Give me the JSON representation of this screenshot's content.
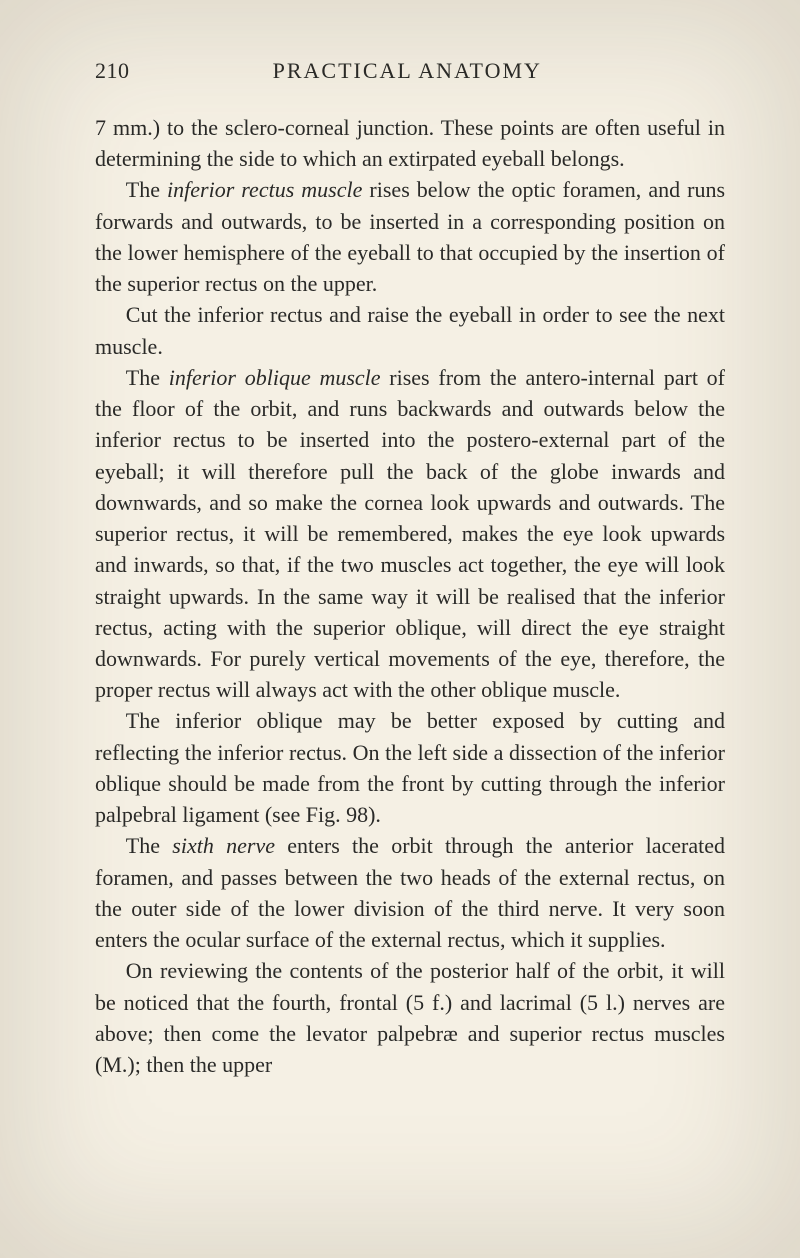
{
  "page": {
    "number": "210",
    "running_title": "PRACTICAL ANATOMY"
  },
  "paragraphs": {
    "p1_a": "7 mm.) to the sclero-corneal junction. These points are often useful in determining the side to which an extirpated eyeball belongs.",
    "p2_a": "The ",
    "p2_b": "inferior rectus muscle",
    "p2_c": " rises below the optic foramen, and runs forwards and outwards, to be inserted in a corresponding position on the lower hemisphere of the eyeball to that occupied by the insertion of the superior rectus on the upper.",
    "p3_a": "Cut the inferior rectus and raise the eyeball in order to see the next muscle.",
    "p4_a": "The ",
    "p4_b": "inferior oblique muscle",
    "p4_c": " rises from the antero-internal part of the floor of the orbit, and runs backwards and outwards below the inferior rectus to be inserted into the postero-external part of the eyeball; it will therefore pull the back of the globe inwards and downwards, and so make the cornea look upwards and outwards. The superior rectus, it will be remembered, makes the eye look upwards and inwards, so that, if the two muscles act together, the eye will look straight upwards. In the same way it will be realised that the inferior rectus, acting with the superior oblique, will direct the eye straight downwards. For purely vertical movements of the eye, therefore, the proper rectus will always act with the other oblique muscle.",
    "p5_a": "The inferior oblique may be better exposed by cutting and reflecting the inferior rectus. On the left side a dissection of the inferior oblique should be made from the front by cutting through the inferior palpebral ligament (see Fig. 98).",
    "p6_a": "The ",
    "p6_b": "sixth nerve",
    "p6_c": " enters the orbit through the anterior lacerated foramen, and passes between the two heads of the external rectus, on the outer side of the lower division of the third nerve. It very soon enters the ocular surface of the external rectus, which it supplies.",
    "p7_a": "On reviewing the contents of the posterior half of the orbit, it will be noticed that the fourth, frontal (5 f.) and lacrimal (5 l.) nerves are above; then come the levator palpebræ and superior rectus muscles (M.); then the upper"
  }
}
